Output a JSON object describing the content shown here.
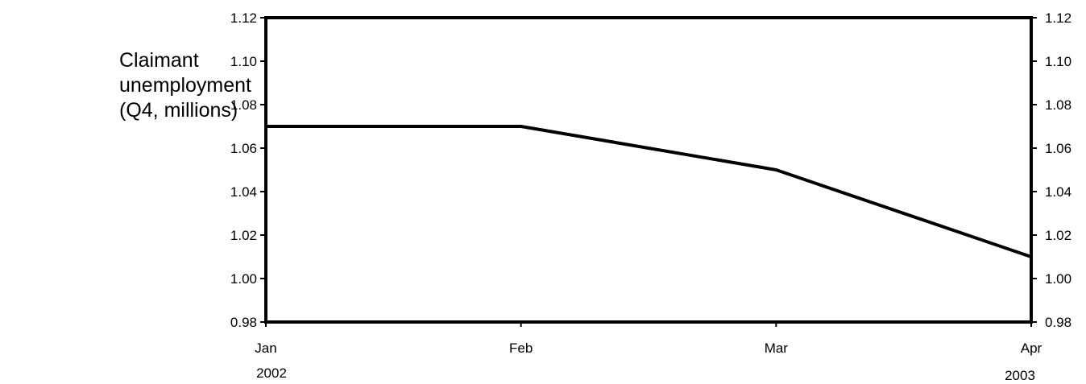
{
  "chart_data": {
    "type": "line",
    "ylabel_lines": [
      "Claimant",
      "unemployment",
      "(Q4, millions)"
    ],
    "xlabel": "",
    "categories": [
      "Jan",
      "Feb",
      "Mar",
      "Apr"
    ],
    "year_labels": {
      "start": "2002",
      "end": "2003"
    },
    "series": [
      {
        "values": [
          1.07,
          1.07,
          1.05,
          1.01
        ],
        "color": "#000000"
      }
    ],
    "ylim": [
      0.98,
      1.12
    ],
    "yticks": [
      "0.98",
      "1.00",
      "1.02",
      "1.04",
      "1.06",
      "1.08",
      "1.10",
      "1.12"
    ],
    "yaxis_mirrored_right": true,
    "grid": false
  }
}
